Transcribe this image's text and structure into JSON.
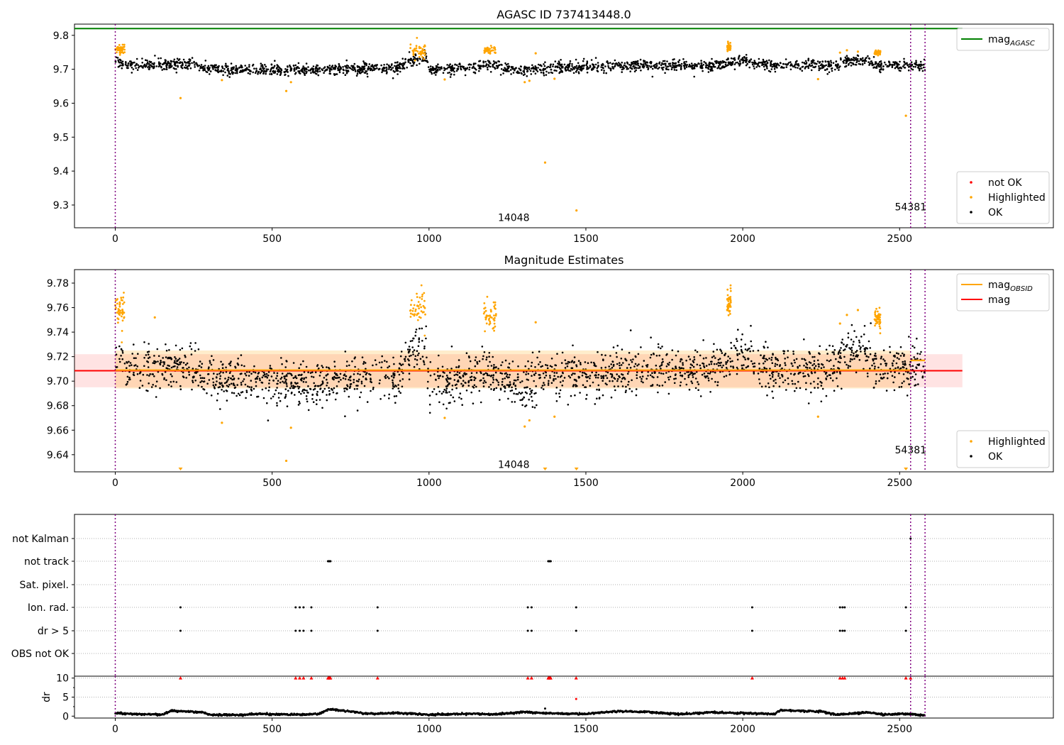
{
  "chart_data": [
    {
      "type": "scatter",
      "title": "AGASC ID 737413448.0",
      "xlim": [
        -130,
        2990
      ],
      "ylim": [
        9.233,
        9.833
      ],
      "x_ticks": [
        0,
        500,
        1000,
        1500,
        2000,
        2500
      ],
      "x_tick_labels": [
        "0",
        "500",
        "1000",
        "1500",
        "2000",
        "2500"
      ],
      "y_ticks": [
        9.3,
        9.4,
        9.5,
        9.6,
        9.7,
        9.8
      ],
      "y_tick_labels": [
        "9.3",
        "9.4",
        "9.5",
        "9.6",
        "9.7",
        "9.8"
      ],
      "reference_line": {
        "name": "mag",
        "subscript": "AGASC",
        "y": 9.82,
        "x_range": [
          -130,
          2700
        ],
        "color": "#008000"
      },
      "obsid_boundaries": [
        0,
        2535,
        2581
      ],
      "obsid_labels": [
        {
          "text": "14048",
          "x": 1270,
          "y": 9.263
        },
        {
          "text": "54381",
          "x": 2535,
          "y": 9.295
        }
      ],
      "legend_upper": {
        "position": "upper-right",
        "entries": [
          {
            "name": "mag",
            "subscript": "AGASC",
            "color": "#008000"
          }
        ]
      },
      "legend_lower": {
        "position": "lower-right",
        "entries": [
          {
            "name": "not OK",
            "color": "#ff0000"
          },
          {
            "name": "Highlighted",
            "color": "#ffa500"
          },
          {
            "name": "OK",
            "color": "#000000"
          }
        ]
      },
      "baseline": [
        [
          0,
          9.722
        ],
        [
          40,
          9.712
        ],
        [
          250,
          9.714
        ],
        [
          300,
          9.702
        ],
        [
          600,
          9.698
        ],
        [
          900,
          9.705
        ],
        [
          940,
          9.728
        ],
        [
          990,
          9.735
        ],
        [
          1000,
          9.7
        ],
        [
          1150,
          9.705
        ],
        [
          1190,
          9.715
        ],
        [
          1210,
          9.708
        ],
        [
          1300,
          9.695
        ],
        [
          1360,
          9.703
        ],
        [
          1600,
          9.71
        ],
        [
          1700,
          9.712
        ],
        [
          1900,
          9.71
        ],
        [
          2000,
          9.725
        ],
        [
          2100,
          9.71
        ],
        [
          2300,
          9.712
        ],
        [
          2320,
          9.728
        ],
        [
          2400,
          9.724
        ],
        [
          2430,
          9.712
        ],
        [
          2581,
          9.712
        ]
      ],
      "spread": 0.008,
      "highlight_clusters": [
        [
          0,
          30,
          9.76,
          0.008
        ],
        [
          940,
          990,
          9.755,
          0.01
        ],
        [
          1175,
          1215,
          9.755,
          0.006
        ],
        [
          1950,
          1962,
          9.765,
          0.006
        ],
        [
          2420,
          2440,
          9.748,
          0.004
        ]
      ],
      "outliers": [
        [
          208,
          9.615
        ],
        [
          340,
          9.668
        ],
        [
          545,
          9.636
        ],
        [
          560,
          9.662
        ],
        [
          1050,
          9.67
        ],
        [
          1305,
          9.662
        ],
        [
          1320,
          9.666
        ],
        [
          1340,
          9.747
        ],
        [
          1370,
          9.425
        ],
        [
          1400,
          9.672
        ],
        [
          1470,
          9.284
        ],
        [
          2240,
          9.671
        ],
        [
          2310,
          9.749
        ],
        [
          2332,
          9.756
        ],
        [
          2367,
          9.752
        ],
        [
          2520,
          9.563
        ]
      ]
    },
    {
      "type": "scatter",
      "title": "Magnitude Estimates",
      "xlim": [
        -130,
        2990
      ],
      "ylim": [
        9.626,
        9.791
      ],
      "x_ticks": [
        0,
        500,
        1000,
        1500,
        2000,
        2500
      ],
      "x_tick_labels": [
        "0",
        "500",
        "1000",
        "1500",
        "2000",
        "2500"
      ],
      "y_ticks": [
        9.64,
        9.66,
        9.68,
        9.7,
        9.72,
        9.74,
        9.76,
        9.78
      ],
      "y_tick_labels": [
        "9.64",
        "9.66",
        "9.68",
        "9.70",
        "9.72",
        "9.74",
        "9.76",
        "9.78"
      ],
      "mag": {
        "name": "mag",
        "y": 9.7085,
        "band": [
          9.695,
          9.722
        ],
        "x_range": [
          -130,
          2700
        ],
        "color": "#ff0000"
      },
      "mag_obsid": {
        "name": "mag",
        "subscript": "OBSID",
        "color": "#ffa500",
        "segments": [
          {
            "x": [
              0,
              2535
            ],
            "y": 9.709,
            "band": [
              9.694,
              9.725
            ]
          },
          {
            "x": [
              2535,
              2581
            ],
            "y": 9.717,
            "band": [
              9.716,
              9.718
            ]
          }
        ]
      },
      "obsid_boundaries": [
        0,
        2535,
        2581
      ],
      "obsid_labels": [
        {
          "text": "14048",
          "x": 1270,
          "y": 9.632
        },
        {
          "text": "54381",
          "x": 2535,
          "y": 9.644
        }
      ],
      "legend_upper": {
        "position": "upper-right",
        "entries": [
          {
            "name": "mag",
            "subscript": "OBSID",
            "color": "#ffa500"
          },
          {
            "name": "mag",
            "color": "#ff0000"
          }
        ]
      },
      "legend_lower": {
        "position": "lower-right",
        "entries": [
          {
            "name": "Highlighted",
            "color": "#ffa500"
          },
          {
            "name": "OK",
            "color": "#000000"
          }
        ]
      },
      "baseline": [
        [
          0,
          9.72
        ],
        [
          40,
          9.71
        ],
        [
          250,
          9.712
        ],
        [
          300,
          9.7
        ],
        [
          600,
          9.698
        ],
        [
          900,
          9.703
        ],
        [
          940,
          9.722
        ],
        [
          990,
          9.728
        ],
        [
          1000,
          9.698
        ],
        [
          1150,
          9.703
        ],
        [
          1190,
          9.712
        ],
        [
          1210,
          9.706
        ],
        [
          1300,
          9.693
        ],
        [
          1360,
          9.702
        ],
        [
          1600,
          9.708
        ],
        [
          1700,
          9.71
        ],
        [
          1900,
          9.708
        ],
        [
          2000,
          9.722
        ],
        [
          2100,
          9.708
        ],
        [
          2300,
          9.71
        ],
        [
          2320,
          9.726
        ],
        [
          2400,
          9.721
        ],
        [
          2430,
          9.71
        ],
        [
          2581,
          9.712
        ]
      ],
      "spread": 0.009,
      "highlight_clusters": [
        [
          0,
          30,
          9.758,
          0.008
        ],
        [
          940,
          990,
          9.758,
          0.01
        ],
        [
          1175,
          1215,
          9.755,
          0.006
        ],
        [
          1950,
          1962,
          9.765,
          0.006
        ],
        [
          2420,
          2440,
          9.752,
          0.004
        ]
      ],
      "outliers": [
        [
          126,
          9.752
        ],
        [
          340,
          9.666
        ],
        [
          545,
          9.635
        ],
        [
          560,
          9.662
        ],
        [
          1050,
          9.67
        ],
        [
          1305,
          9.663
        ],
        [
          1320,
          9.668
        ],
        [
          1340,
          9.748
        ],
        [
          1400,
          9.671
        ],
        [
          2240,
          9.671
        ],
        [
          2310,
          9.747
        ],
        [
          2332,
          9.754
        ],
        [
          2367,
          9.758
        ]
      ],
      "off_scale_markers": [
        208,
        1370,
        1470,
        2520
      ]
    },
    {
      "type": "scatter",
      "title": "",
      "xlim": [
        -130,
        2990
      ],
      "categories": [
        "not Kalman",
        "not track",
        "Sat. pixel.",
        "Ion. rad.",
        "dr > 5",
        "OBS not OK"
      ],
      "flags": {
        "not Kalman": [
          2535
        ],
        "not track": [
          678,
          680,
          682,
          684,
          686,
          1380,
          1382,
          1384,
          1386,
          1388
        ],
        "Sat. pixel.": [],
        "Ion. rad.": [
          208,
          575,
          588,
          600,
          625,
          836,
          1315,
          1327,
          1469,
          2030,
          2310,
          2318,
          2325,
          2520
        ],
        "dr > 5": [
          208,
          575,
          588,
          600,
          625,
          836,
          1315,
          1327,
          1469,
          2030,
          2310,
          2318,
          2325,
          2520
        ],
        "OBS not OK": []
      }
    },
    {
      "type": "line",
      "ylabel": "dr",
      "xlim": [
        -130,
        2990
      ],
      "ylim": [
        -0.5,
        10.5
      ],
      "x_ticks": [
        0,
        500,
        1000,
        1500,
        2000,
        2500
      ],
      "x_tick_labels": [
        "0",
        "500",
        "1000",
        "1500",
        "2000",
        "2500"
      ],
      "y_ticks": [
        0,
        5,
        10
      ],
      "y_tick_labels": [
        "0",
        "5",
        "10"
      ],
      "obsid_boundaries": [
        0,
        2535,
        2581
      ],
      "dr_profile": [
        [
          0,
          0.8
        ],
        [
          50,
          0.6
        ],
        [
          150,
          0.4
        ],
        [
          180,
          1.4
        ],
        [
          280,
          1.0
        ],
        [
          300,
          0.4
        ],
        [
          400,
          0.3
        ],
        [
          450,
          0.6
        ],
        [
          500,
          0.5
        ],
        [
          600,
          0.4
        ],
        [
          650,
          0.6
        ],
        [
          680,
          1.8
        ],
        [
          750,
          1.3
        ],
        [
          800,
          0.6
        ],
        [
          900,
          0.8
        ],
        [
          1000,
          0.4
        ],
        [
          1100,
          0.5
        ],
        [
          1150,
          0.7
        ],
        [
          1200,
          0.4
        ],
        [
          1300,
          1.1
        ],
        [
          1370,
          0.8
        ],
        [
          1450,
          0.6
        ],
        [
          1500,
          0.6
        ],
        [
          1600,
          1.3
        ],
        [
          1700,
          1.1
        ],
        [
          1800,
          0.5
        ],
        [
          1900,
          1.0
        ],
        [
          2000,
          0.8
        ],
        [
          2100,
          0.6
        ],
        [
          2120,
          1.6
        ],
        [
          2250,
          1.2
        ],
        [
          2300,
          0.4
        ],
        [
          2400,
          1.0
        ],
        [
          2450,
          0.4
        ],
        [
          2500,
          0.6
        ],
        [
          2535,
          0.5
        ],
        [
          2581,
          0.2
        ]
      ],
      "clipped_markers": [
        208,
        575,
        588,
        600,
        625,
        678,
        680,
        682,
        684,
        686,
        836,
        1315,
        1327,
        1380,
        1382,
        1384,
        1386,
        1388,
        1469,
        2030,
        2310,
        2318,
        2325,
        2520,
        2535
      ],
      "outlier_points": [
        [
          1370,
          2.0
        ],
        [
          1469,
          4.5
        ]
      ]
    }
  ]
}
